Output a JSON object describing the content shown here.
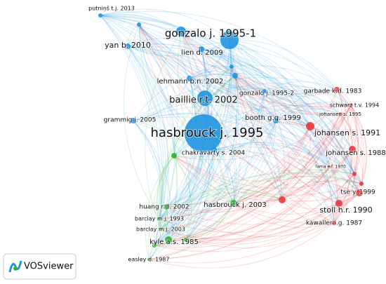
{
  "nodes": [
    {
      "label": "putniņš t.j. 2013"
    },
    {
      "label": "gonzalo j. 1995-1"
    },
    {
      "label": "yan b. 2010"
    },
    {
      "label": "lien d. 2009"
    },
    {
      "label": "lehmann b.n. 2002"
    },
    {
      "label": "baillie r.t. 2002"
    },
    {
      "label": "gonzalo j. 1995-2"
    },
    {
      "label": "booth g.g. 1999"
    },
    {
      "label": "grammig j. 2005"
    },
    {
      "label": "hasbrouck j. 1995"
    },
    {
      "label": "chakravarty s. 2004"
    },
    {
      "label": "garbade k.d. 1983"
    },
    {
      "label": "schwarz t.v. 1994"
    },
    {
      "label": "johansen s. 1995"
    },
    {
      "label": "johansen s. 1991"
    },
    {
      "label": "johansen s. 1988"
    },
    {
      "label": "fama e.f. 1970"
    },
    {
      "label": "tse y. 1999"
    },
    {
      "label": "stoll h.r. 1990"
    },
    {
      "label": "kawaller i.g. 1987"
    },
    {
      "label": "huang r.d. 2002"
    },
    {
      "label": "hasbrouck j. 2003"
    },
    {
      "label": "barclay m.j. 1993"
    },
    {
      "label": "barclay m.j. 2003"
    },
    {
      "label": "kyle a.s. 1985"
    },
    {
      "label": "easley d. 1987"
    }
  ],
  "logo": {
    "text": "VOSviewer"
  }
}
